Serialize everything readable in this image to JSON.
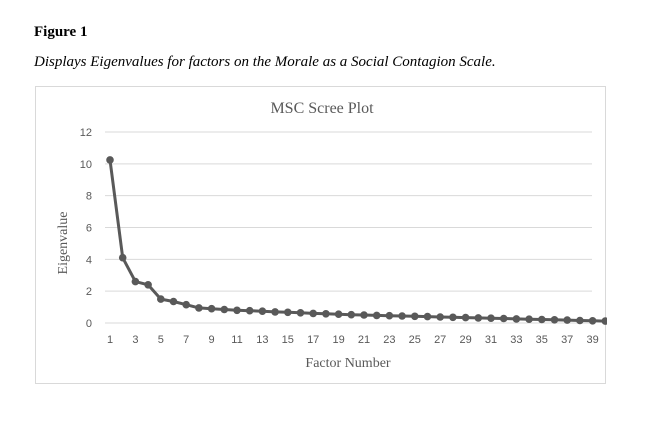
{
  "figure": {
    "label": "Figure 1",
    "caption": "Displays Eigenvalues for factors on the Morale as a Social Contagion Scale."
  },
  "chart_data": {
    "type": "line",
    "title": "MSC Scree Plot",
    "xlabel": "Factor Number",
    "ylabel": "Eigenvalue",
    "ylim": [
      0,
      12
    ],
    "yticks": [
      0,
      2,
      4,
      6,
      8,
      10,
      12
    ],
    "xlim": [
      1,
      40
    ],
    "xticks": [
      1,
      3,
      5,
      7,
      9,
      11,
      13,
      15,
      17,
      19,
      21,
      23,
      25,
      27,
      29,
      31,
      33,
      35,
      37,
      39
    ],
    "grid": "horizontal",
    "legend": "none",
    "line_color": "#595959",
    "x": [
      1,
      2,
      3,
      4,
      5,
      6,
      7,
      8,
      9,
      10,
      11,
      12,
      13,
      14,
      15,
      16,
      17,
      18,
      19,
      20,
      21,
      22,
      23,
      24,
      25,
      26,
      27,
      28,
      29,
      30,
      31,
      32,
      33,
      34,
      35,
      36,
      37,
      38,
      39,
      40
    ],
    "values": [
      10.25,
      4.1,
      2.6,
      2.4,
      1.5,
      1.35,
      1.15,
      0.95,
      0.9,
      0.85,
      0.8,
      0.77,
      0.74,
      0.7,
      0.67,
      0.64,
      0.6,
      0.58,
      0.55,
      0.52,
      0.5,
      0.48,
      0.46,
      0.44,
      0.42,
      0.4,
      0.38,
      0.36,
      0.34,
      0.32,
      0.3,
      0.28,
      0.26,
      0.24,
      0.22,
      0.2,
      0.18,
      0.16,
      0.14,
      0.12
    ]
  }
}
